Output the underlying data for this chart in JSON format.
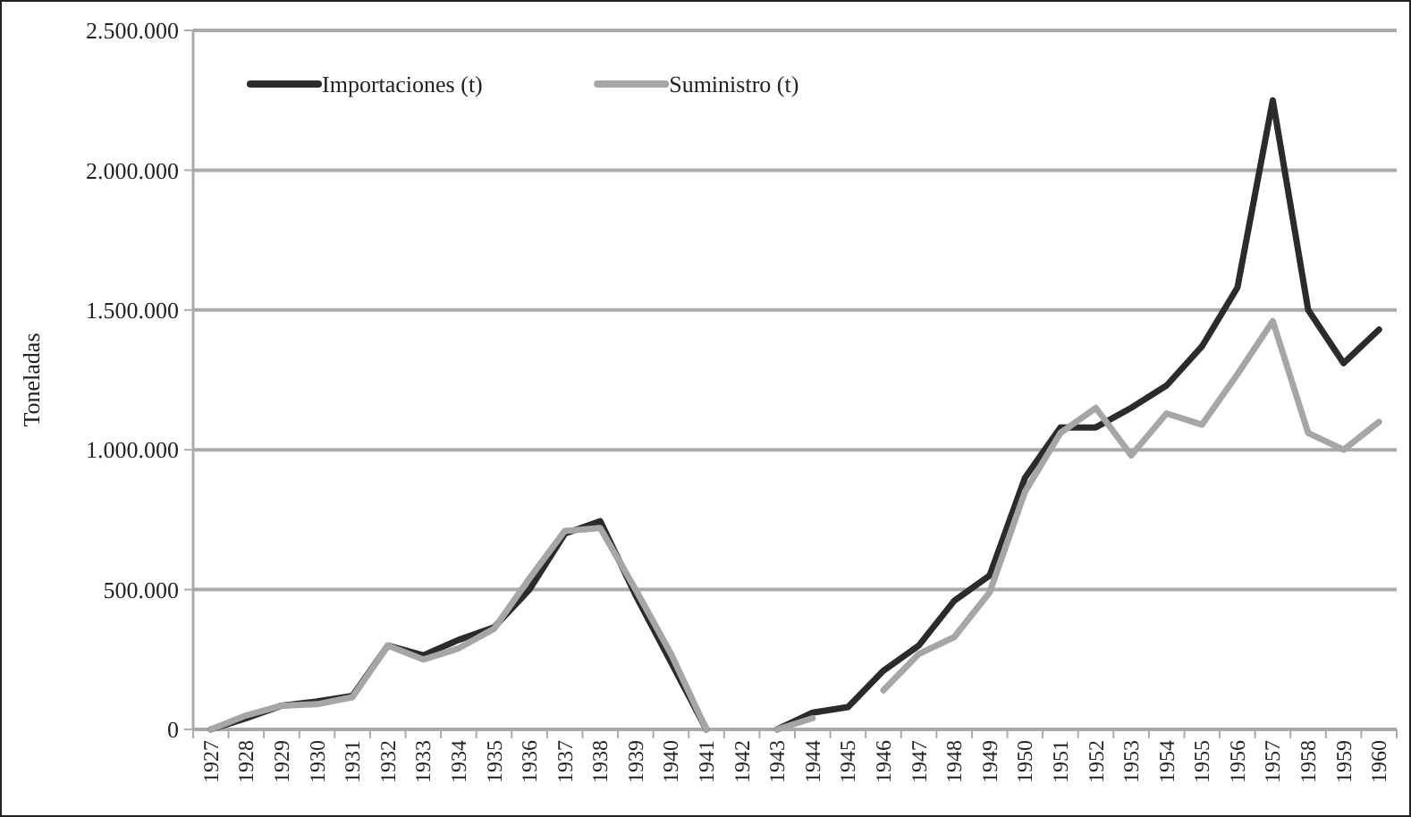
{
  "chart_data": {
    "type": "line",
    "ylabel": "Toneladas",
    "categories": [
      "1927",
      "1928",
      "1929",
      "1930",
      "1931",
      "1932",
      "1933",
      "1934",
      "1935",
      "1936",
      "1937",
      "1938",
      "1939",
      "1940",
      "1941",
      "1942",
      "1943",
      "1944",
      "1945",
      "1946",
      "1947",
      "1948",
      "1949",
      "1950",
      "1951",
      "1952",
      "1953",
      "1954",
      "1955",
      "1956",
      "1957",
      "1958",
      "1959",
      "1960"
    ],
    "series": [
      {
        "name": "Importaciones (t)",
        "color": "#2b2b2b",
        "values": [
          0,
          40000,
          85000,
          100000,
          120000,
          300000,
          265000,
          320000,
          365000,
          500000,
          700000,
          745000,
          480000,
          240000,
          0,
          null,
          0,
          60000,
          80000,
          210000,
          300000,
          460000,
          550000,
          900000,
          1080000,
          1080000,
          1150000,
          1230000,
          1370000,
          1580000,
          2250000,
          1500000,
          1310000,
          1430000
        ]
      },
      {
        "name": "Suministro (t)",
        "color": "#a6a6a6",
        "values": [
          0,
          50000,
          85000,
          90000,
          115000,
          300000,
          250000,
          290000,
          360000,
          540000,
          710000,
          720000,
          500000,
          270000,
          0,
          null,
          0,
          40000,
          null,
          140000,
          270000,
          330000,
          490000,
          850000,
          1060000,
          1150000,
          980000,
          1130000,
          1090000,
          1270000,
          1460000,
          1060000,
          1000000,
          1100000
        ]
      }
    ],
    "ylim": [
      0,
      2500000
    ],
    "yticks": [
      {
        "value": 0,
        "label": "0"
      },
      {
        "value": 500000,
        "label": "500.000"
      },
      {
        "value": 1000000,
        "label": "1.000.000"
      },
      {
        "value": 1500000,
        "label": "1.500.000"
      },
      {
        "value": 2000000,
        "label": "2.000.000"
      },
      {
        "value": 2500000,
        "label": "2.500.000"
      }
    ],
    "grid": "y",
    "legend": "top left",
    "marker": "none",
    "line_style": "solid"
  }
}
